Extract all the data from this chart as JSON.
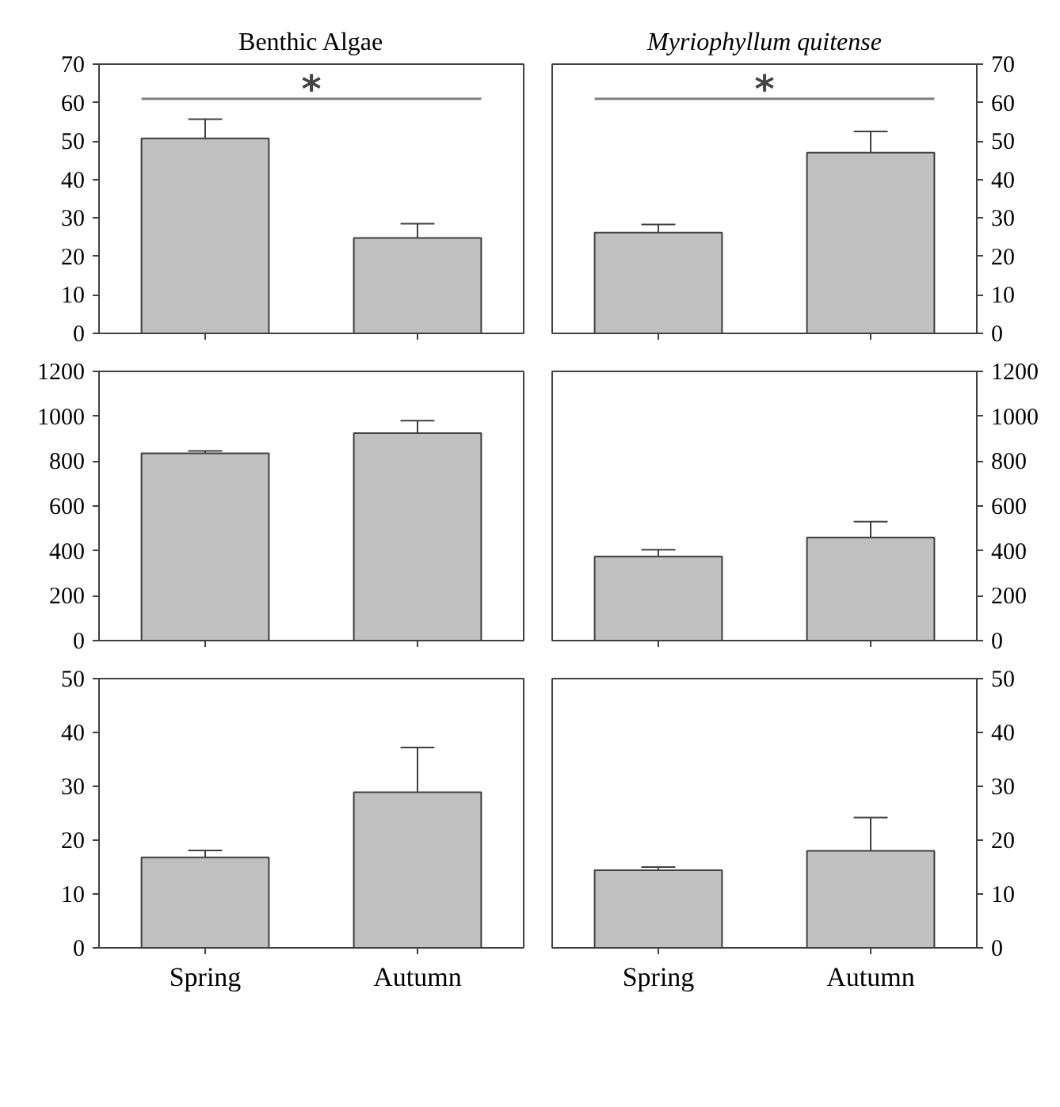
{
  "chart_data": [
    {
      "type": "bar",
      "title": "Benthic Algae",
      "categories": [
        null,
        null
      ],
      "values": [
        50.7,
        24.8
      ],
      "errors": [
        [
          50.7,
          55.7
        ],
        [
          24.8,
          28.5
        ]
      ],
      "color": "#c0c0c0",
      "ylim": [
        0,
        70
      ],
      "yticks": [
        0,
        10,
        20,
        30,
        40,
        50,
        60,
        70
      ],
      "tick_labels": "y",
      "grid": false,
      "ref_lines": [
        {
          "axis": "y",
          "value": 61,
          "label": "*",
          "color": "#808080"
        }
      ]
    },
    {
      "type": "bar",
      "title": "Myriophyllum quitense",
      "categories": [
        null,
        null
      ],
      "values": [
        26.2,
        47
      ],
      "errors": [
        [
          26.2,
          28.3
        ],
        [
          47,
          52.5
        ]
      ],
      "color": "#c0c0c0",
      "ylim": [
        0,
        70
      ],
      "yticks": [
        0,
        10,
        20,
        30,
        40,
        50,
        60,
        70
      ],
      "tick_labels": "y",
      "grid": false,
      "ref_lines": [
        {
          "axis": "y",
          "value": 61,
          "label": "*",
          "color": "#808080"
        }
      ]
    },
    {
      "type": "bar",
      "categories": [
        null,
        null
      ],
      "values": [
        835,
        925
      ],
      "errors": [
        [
          835,
          845
        ],
        [
          925,
          980
        ]
      ],
      "color": "#c0c0c0",
      "ylim": [
        0,
        1200
      ],
      "yticks": [
        0,
        200,
        400,
        600,
        800,
        1000,
        1200
      ],
      "tick_labels": "y",
      "grid": false
    },
    {
      "type": "bar",
      "categories": [
        null,
        null
      ],
      "values": [
        375,
        460
      ],
      "errors": [
        [
          375,
          405
        ],
        [
          460,
          530
        ]
      ],
      "color": "#c0c0c0",
      "ylim": [
        0,
        1200
      ],
      "yticks": [
        0,
        200,
        400,
        600,
        800,
        1000,
        1200
      ],
      "tick_labels": "y",
      "grid": false
    },
    {
      "type": "bar",
      "categories": [
        "Spring",
        "Autumn"
      ],
      "values": [
        16.8,
        28.9
      ],
      "errors": [
        [
          16.8,
          18.1
        ],
        [
          28.9,
          37.2
        ]
      ],
      "color": "#c0c0c0",
      "ylim": [
        0,
        50
      ],
      "yticks": [
        0,
        10,
        20,
        30,
        40,
        50
      ],
      "grid": false
    },
    {
      "type": "bar",
      "categories": [
        "Spring",
        "Autumn"
      ],
      "values": [
        14.4,
        18
      ],
      "errors": [
        [
          14.4,
          15
        ],
        [
          18,
          24.2
        ]
      ],
      "color": "#c0c0c0",
      "ylim": [
        0,
        50
      ],
      "yticks": [
        0,
        10,
        20,
        30,
        40,
        50
      ],
      "grid": false
    }
  ]
}
